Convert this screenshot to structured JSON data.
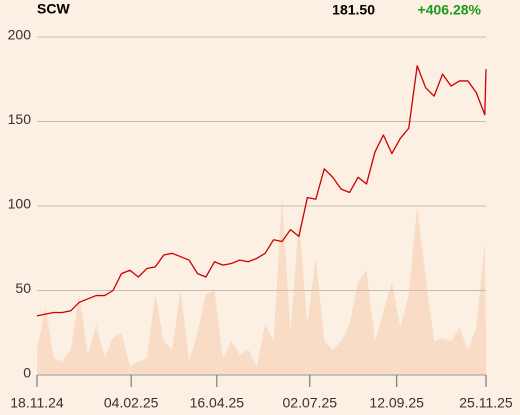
{
  "chart_data": {
    "type": "line",
    "title": "SCW",
    "last_price": "181.50",
    "change": "+406.28%",
    "x": [
      "2024-11-18",
      "2024-11-25",
      "2024-12-02",
      "2024-12-09",
      "2024-12-16",
      "2024-12-23",
      "2024-12-30",
      "2025-01-06",
      "2025-01-13",
      "2025-01-20",
      "2025-01-27",
      "2025-02-03",
      "2025-02-10",
      "2025-02-17",
      "2025-02-24",
      "2025-03-03",
      "2025-03-10",
      "2025-03-17",
      "2025-03-24",
      "2025-03-31",
      "2025-04-07",
      "2025-04-14",
      "2025-04-21",
      "2025-04-28",
      "2025-05-05",
      "2025-05-12",
      "2025-05-19",
      "2025-05-26",
      "2025-06-02",
      "2025-06-09",
      "2025-06-16",
      "2025-06-23",
      "2025-06-30",
      "2025-07-07",
      "2025-07-14",
      "2025-07-21",
      "2025-07-28",
      "2025-08-04",
      "2025-08-11",
      "2025-08-18",
      "2025-08-25",
      "2025-09-01",
      "2025-09-08",
      "2025-09-15",
      "2025-09-22",
      "2025-09-29",
      "2025-10-06",
      "2025-10-13",
      "2025-10-20",
      "2025-10-27",
      "2025-11-03",
      "2025-11-10",
      "2025-11-17",
      "2025-11-24",
      "2025-11-25"
    ],
    "series": [
      {
        "color": "#cc0000",
        "values": [
          35,
          36,
          37,
          37,
          38,
          43,
          45,
          47,
          47,
          50,
          60,
          62,
          58,
          63,
          64,
          71,
          72,
          70,
          68,
          60,
          58,
          67,
          65,
          66,
          68,
          67,
          69,
          72,
          80,
          79,
          86,
          82,
          105,
          104,
          122,
          117,
          110,
          108,
          117,
          113,
          132,
          142,
          131,
          140,
          146,
          183,
          170,
          165,
          178,
          171,
          174,
          174,
          167,
          154,
          181
        ]
      },
      {
        "color": "#f8dcc6",
        "values": [
          15,
          40,
          10,
          8,
          15,
          48,
          12,
          30,
          10,
          22,
          25,
          5,
          8,
          10,
          48,
          20,
          15,
          50,
          8,
          25,
          48,
          50,
          10,
          20,
          12,
          15,
          5,
          30,
          20,
          105,
          25,
          92,
          30,
          70,
          20,
          15,
          20,
          30,
          55,
          62,
          20,
          38,
          55,
          28,
          48,
          100,
          58,
          20,
          22,
          20,
          28,
          15,
          28,
          78,
          20
        ]
      }
    ],
    "xlim": [
      "2024-11-18",
      "2025-11-25"
    ],
    "xticks": [
      {
        "value": "2024-11-18",
        "label": "18.11.24"
      },
      {
        "value": "2025-02-04",
        "label": "04.02.25"
      },
      {
        "value": "2025-04-16",
        "label": "16.04.25"
      },
      {
        "value": "2025-07-02",
        "label": "02.07.25"
      },
      {
        "value": "2025-09-12",
        "label": "12.09.25"
      },
      {
        "value": "2025-11-25",
        "label": "25.11.25"
      }
    ],
    "ylim": [
      0,
      200
    ],
    "yticks": [
      0,
      50,
      100,
      150,
      200
    ],
    "grid": true
  }
}
